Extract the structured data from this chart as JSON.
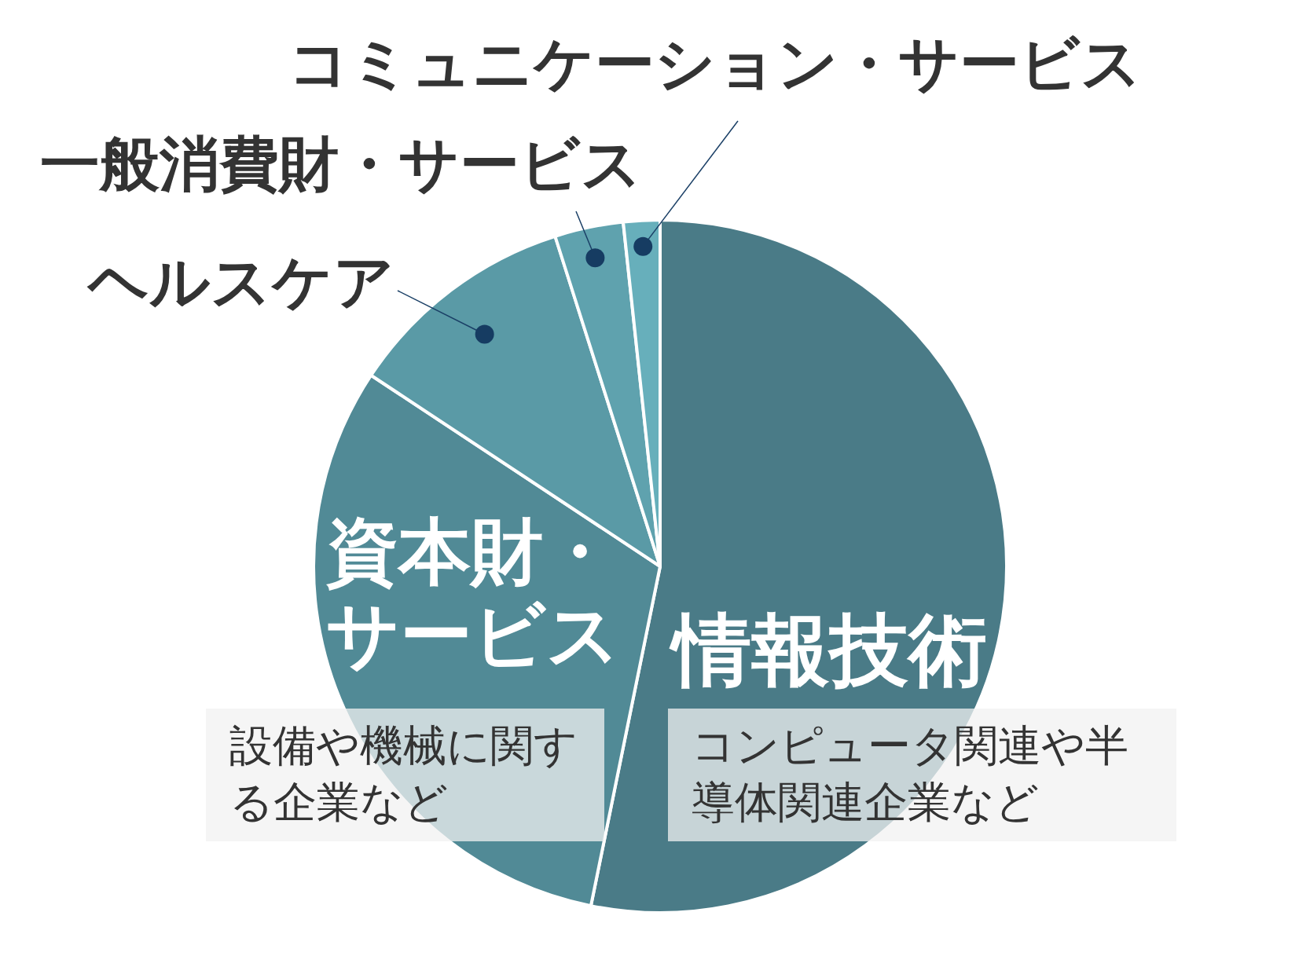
{
  "chart_data": {
    "type": "pie",
    "categories": [
      "情報技術",
      "資本財・サービス",
      "ヘルスケア",
      "一般消費財・サービス",
      "コミュニケーション・サービス"
    ],
    "values": [
      53.2,
      31.1,
      10.8,
      3.2,
      1.7
    ],
    "colors": [
      "#4a7b87",
      "#518a96",
      "#5a9aa6",
      "#5fa2ae",
      "#67afbb"
    ],
    "annotations": [
      "設備や機械に関する企業など",
      "コンピュータ関連や半導体関連企業など"
    ]
  }
}
